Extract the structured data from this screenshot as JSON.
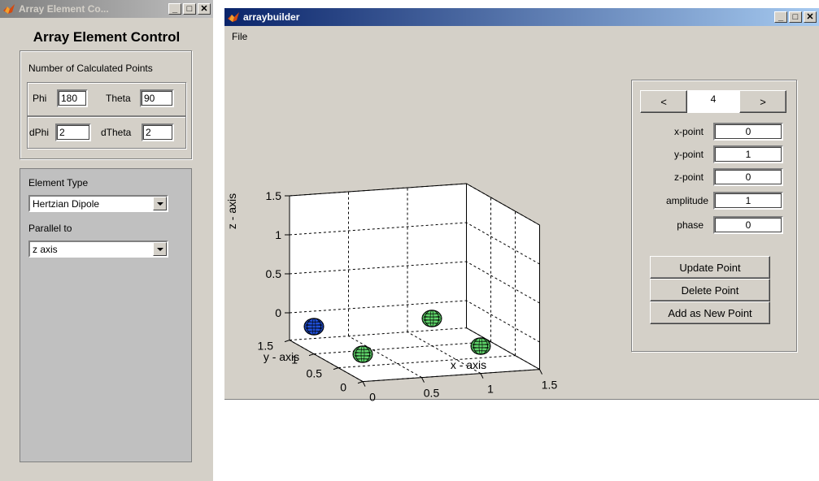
{
  "control_window": {
    "title": "Array Element Co...",
    "heading": "Array Element Control",
    "points_panel": {
      "label": "Number of Calculated Points",
      "phi_label": "Phi",
      "phi_value": "180",
      "theta_label": "Theta",
      "theta_value": "90",
      "dphi_label": "dPhi",
      "dphi_value": "2",
      "dtheta_label": "dTheta",
      "dtheta_value": "2"
    },
    "element_panel": {
      "type_label": "Element Type",
      "type_value": "Hertzian Dipole",
      "parallel_label": "Parallel to",
      "parallel_value": "z axis"
    }
  },
  "builder_window": {
    "title": "arraybuilder",
    "menu": [
      "File"
    ],
    "point_nav": {
      "prev_label": "<",
      "index": "4",
      "next_label": ">"
    },
    "point_fields": [
      {
        "label": "x-point",
        "value": "0"
      },
      {
        "label": "y-point",
        "value": "1"
      },
      {
        "label": "z-point",
        "value": "0"
      },
      {
        "label": "amplitude",
        "value": "1"
      },
      {
        "label": "phase",
        "value": "0"
      }
    ],
    "buttons": {
      "update": "Update Point",
      "delete": "Delete Point",
      "add": "Add as New Point"
    }
  },
  "chart_data": {
    "type": "scatter3d",
    "xlabel": "x - axis",
    "ylabel": "y - axis",
    "zlabel": "z - axis",
    "x_ticks": [
      "0",
      "0.5",
      "1",
      "1.5"
    ],
    "y_ticks": [
      "0",
      "0.5",
      "1",
      "1.5"
    ],
    "z_ticks": [
      "0",
      "0.5",
      "1",
      "1.5"
    ],
    "xlim": [
      0,
      1.5
    ],
    "ylim": [
      0,
      1.5
    ],
    "zlim": [
      0,
      1.5
    ],
    "grid": true,
    "points": [
      {
        "x": 0,
        "y": 1,
        "z": 0,
        "color": "#1f4fd8",
        "selected": true
      },
      {
        "x": 1,
        "y": 1,
        "z": 0,
        "color": "#5fd46a",
        "selected": false
      },
      {
        "x": 0,
        "y": 0,
        "z": 0,
        "color": "#5fd46a",
        "selected": false
      },
      {
        "x": 1,
        "y": 0,
        "z": 0,
        "color": "#5fd46a",
        "selected": false
      }
    ]
  }
}
